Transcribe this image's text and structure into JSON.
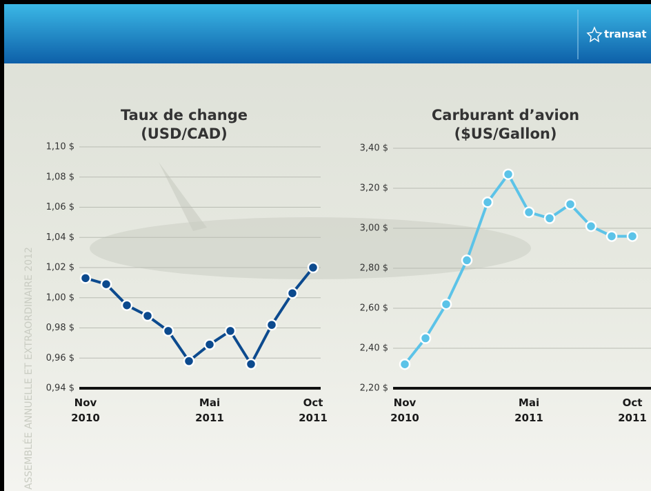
{
  "header": {
    "logo": "transat"
  },
  "side_text": "ASSEMBLÉE ANNUELLE ET EXTRAORDINAIRE 2012",
  "chart_data": [
    {
      "type": "line",
      "title": "Taux de change",
      "subtitle": "(USD/CAD)",
      "categories": [
        "Nov 2010",
        null,
        null,
        null,
        null,
        null,
        "Mai 2011",
        null,
        null,
        null,
        null,
        "Oct 2011"
      ],
      "series": [
        {
          "name": "USD/CAD",
          "color": "#0c4a8e",
          "values": [
            1.013,
            1.009,
            0.995,
            0.988,
            0.978,
            0.958,
            0.969,
            0.978,
            0.956,
            0.982,
            1.003,
            1.02
          ]
        }
      ],
      "ylim": [
        0.94,
        1.1
      ],
      "yticks": [
        {
          "value": 0.94,
          "label": "0,94 $"
        },
        {
          "value": 0.96,
          "label": "0,96 $"
        },
        {
          "value": 0.98,
          "label": "0,98 $"
        },
        {
          "value": 1.0,
          "label": "1,00 $"
        },
        {
          "value": 1.02,
          "label": "1,02 $"
        },
        {
          "value": 1.04,
          "label": "1,04 $"
        },
        {
          "value": 1.06,
          "label": "1,06 $"
        },
        {
          "value": 1.08,
          "label": "1,08 $"
        },
        {
          "value": 1.1,
          "label": "1,10 $"
        }
      ],
      "grid": true
    },
    {
      "type": "line",
      "title": "Carburant d’avion",
      "subtitle": "($US/Gallon)",
      "categories": [
        "Nov 2010",
        null,
        null,
        null,
        null,
        null,
        "Mai 2011",
        null,
        null,
        null,
        null,
        "Oct 2011"
      ],
      "series": [
        {
          "name": "$US/Gallon",
          "color": "#5cc3e8",
          "values": [
            2.32,
            2.45,
            2.62,
            2.84,
            3.13,
            3.27,
            3.08,
            3.05,
            3.12,
            3.01,
            2.96,
            2.96
          ]
        }
      ],
      "ylim": [
        2.2,
        3.4
      ],
      "yticks": [
        {
          "value": 2.2,
          "label": "2,20 $"
        },
        {
          "value": 2.4,
          "label": "2,40 $"
        },
        {
          "value": 2.6,
          "label": "2,60 $"
        },
        {
          "value": 2.8,
          "label": "2,80 $"
        },
        {
          "value": 3.0,
          "label": "3,00 $"
        },
        {
          "value": 3.2,
          "label": "3,20 $"
        },
        {
          "value": 3.4,
          "label": "3,40 $"
        }
      ],
      "grid": true
    }
  ]
}
